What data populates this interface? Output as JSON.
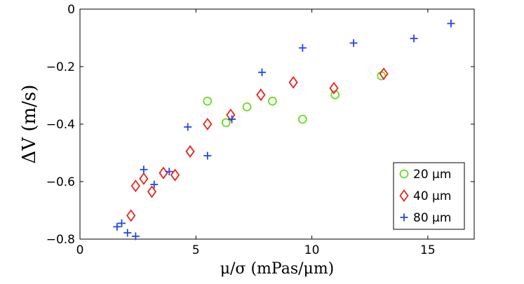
{
  "chart_data": {
    "type": "scatter",
    "title": "",
    "xlabel": "μ/σ (mPas/μm)",
    "ylabel": "ΔV (m/s)",
    "xlim": [
      0,
      17
    ],
    "ylim": [
      -0.8,
      0
    ],
    "xticks": [
      0,
      5,
      10,
      15
    ],
    "xtick_labels": [
      "0",
      "5",
      "10",
      "15"
    ],
    "yticks": [
      -0.8,
      -0.6,
      -0.4,
      -0.2,
      0
    ],
    "ytick_labels": [
      "−0.8",
      "−0.6",
      "−0.4",
      "−0.2",
      "0"
    ],
    "grid": false,
    "legend_position": "bottom-right",
    "series": [
      {
        "name": "20 μm",
        "marker": "circle",
        "color": "#66dd22",
        "points": [
          [
            5.5,
            -0.32
          ],
          [
            6.3,
            -0.395
          ],
          [
            7.2,
            -0.34
          ],
          [
            8.3,
            -0.32
          ],
          [
            9.6,
            -0.383
          ],
          [
            11.0,
            -0.298
          ],
          [
            13.0,
            -0.232
          ]
        ]
      },
      {
        "name": "40 μm",
        "marker": "diamond",
        "color": "#e8241a",
        "points": [
          [
            2.2,
            -0.718
          ],
          [
            2.4,
            -0.615
          ],
          [
            2.75,
            -0.59
          ],
          [
            3.1,
            -0.635
          ],
          [
            3.6,
            -0.57
          ],
          [
            4.1,
            -0.577
          ],
          [
            4.75,
            -0.495
          ],
          [
            5.5,
            -0.4
          ],
          [
            6.5,
            -0.368
          ],
          [
            7.8,
            -0.298
          ],
          [
            9.2,
            -0.255
          ],
          [
            10.95,
            -0.275
          ],
          [
            13.1,
            -0.225
          ]
        ]
      },
      {
        "name": "80 μm",
        "marker": "plus",
        "color": "#2244ee",
        "points": [
          [
            1.6,
            -0.757
          ],
          [
            1.8,
            -0.745
          ],
          [
            2.05,
            -0.778
          ],
          [
            2.4,
            -0.79
          ],
          [
            2.75,
            -0.558
          ],
          [
            3.2,
            -0.61
          ],
          [
            3.85,
            -0.565
          ],
          [
            4.65,
            -0.41
          ],
          [
            5.5,
            -0.51
          ],
          [
            6.55,
            -0.383
          ],
          [
            7.85,
            -0.22
          ],
          [
            9.6,
            -0.135
          ],
          [
            11.8,
            -0.118
          ],
          [
            14.4,
            -0.102
          ],
          [
            16.0,
            -0.05
          ]
        ]
      }
    ]
  }
}
